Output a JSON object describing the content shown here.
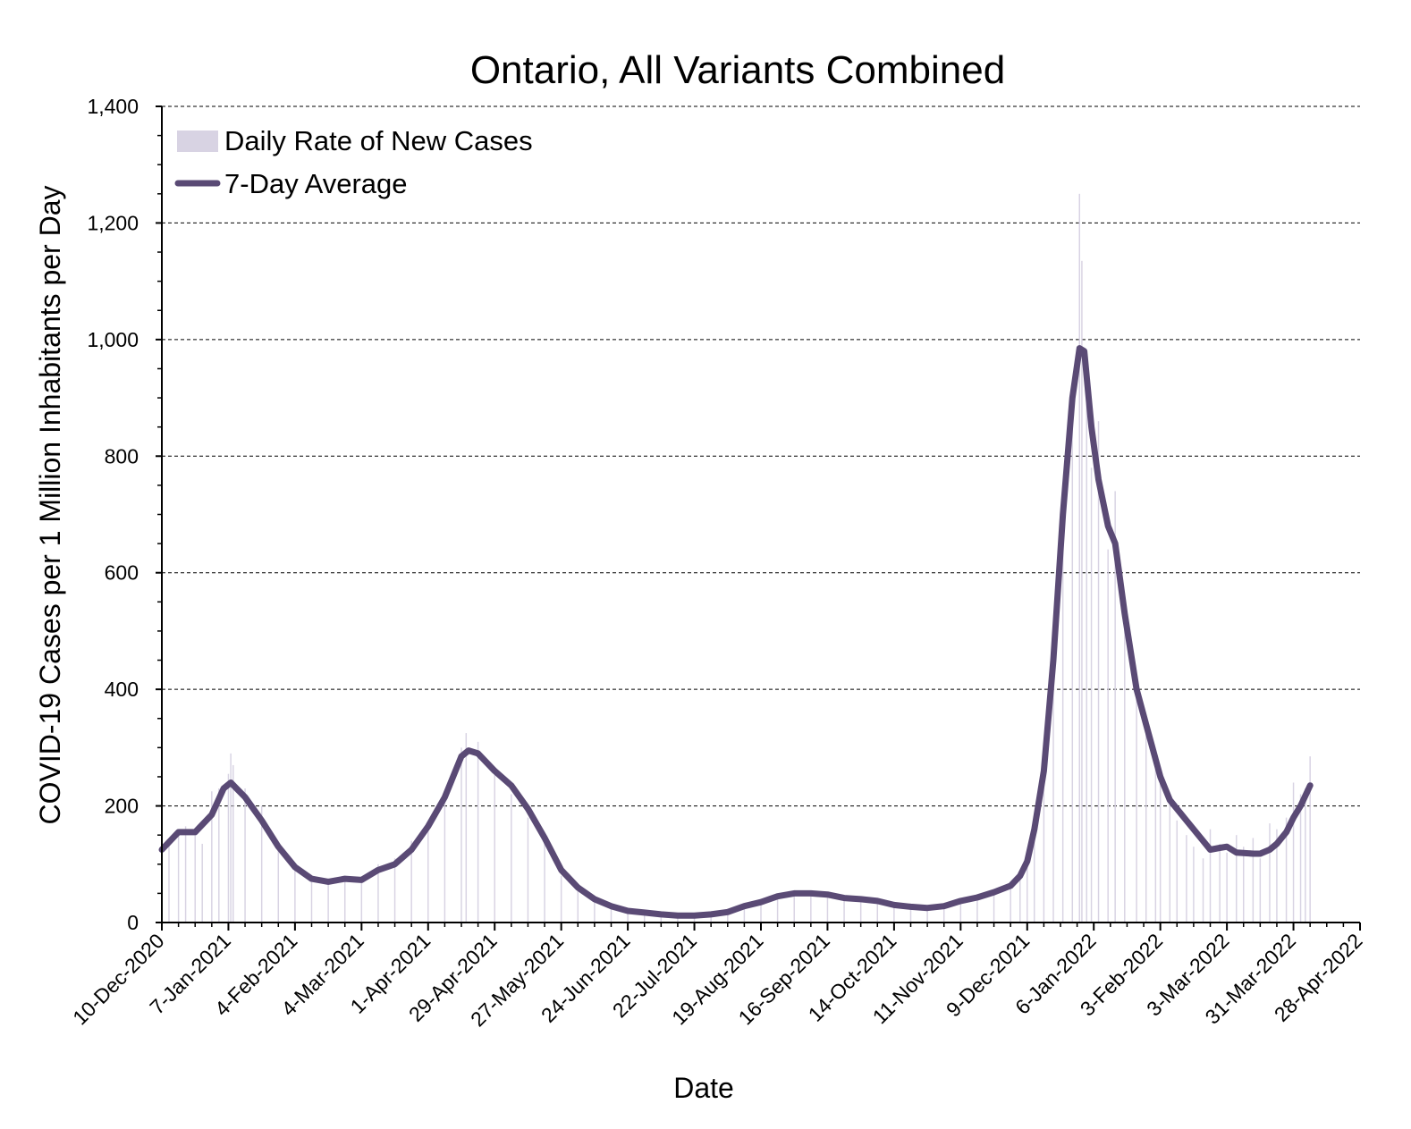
{
  "chart_data": {
    "type": "bar+line",
    "title": "Ontario, All Variants Combined",
    "xlabel": "Date",
    "ylabel": "COVID-19 Cases per 1 Million Inhabitants per Day",
    "ylim": [
      0,
      1400
    ],
    "y_ticks": [
      "0",
      "200",
      "400",
      "600",
      "800",
      "1,000",
      "1,200",
      "1,400"
    ],
    "y_tick_values": [
      0,
      200,
      400,
      600,
      800,
      1000,
      1200,
      1400
    ],
    "y_minor_step": 50,
    "x_range": [
      "2020-12-10",
      "2022-04-28"
    ],
    "x_ticks": [
      "10-Dec-2020",
      "7-Jan-2021",
      "4-Feb-2021",
      "4-Mar-2021",
      "1-Apr-2021",
      "29-Apr-2021",
      "27-May-2021",
      "24-Jun-2021",
      "22-Jul-2021",
      "19-Aug-2021",
      "16-Sep-2021",
      "14-Oct-2021",
      "11-Nov-2021",
      "9-Dec-2021",
      "6-Jan-2022",
      "3-Feb-2022",
      "3-Mar-2022",
      "31-Mar-2022",
      "28-Apr-2022"
    ],
    "x_tick_dates": [
      "2020-12-10",
      "2021-01-07",
      "2021-02-04",
      "2021-03-04",
      "2021-04-01",
      "2021-04-29",
      "2021-05-27",
      "2021-06-24",
      "2021-07-22",
      "2021-08-19",
      "2021-09-16",
      "2021-10-14",
      "2021-11-11",
      "2021-12-09",
      "2022-01-06",
      "2022-02-03",
      "2022-03-03",
      "2022-03-31",
      "2022-04-28"
    ],
    "grid": "horizontal-dashed",
    "legend_position": "top-left",
    "colors": {
      "bars": "#d8d3e3",
      "line": "#5a4a75",
      "grid": "#000000"
    },
    "series": [
      {
        "name": "Daily Rate of New Cases",
        "kind": "bar",
        "values": [
          [
            "2020-12-10",
            125
          ],
          [
            "2020-12-13",
            140
          ],
          [
            "2020-12-17",
            155
          ],
          [
            "2020-12-20",
            165
          ],
          [
            "2020-12-24",
            150
          ],
          [
            "2020-12-27",
            135
          ],
          [
            "2020-12-31",
            225
          ],
          [
            "2021-01-03",
            230
          ],
          [
            "2021-01-07",
            255
          ],
          [
            "2021-01-08",
            290
          ],
          [
            "2021-01-09",
            270
          ],
          [
            "2021-01-14",
            230
          ],
          [
            "2021-01-21",
            200
          ],
          [
            "2021-01-28",
            130
          ],
          [
            "2021-02-04",
            90
          ],
          [
            "2021-02-11",
            80
          ],
          [
            "2021-02-18",
            70
          ],
          [
            "2021-02-25",
            80
          ],
          [
            "2021-03-04",
            75
          ],
          [
            "2021-03-11",
            100
          ],
          [
            "2021-03-18",
            110
          ],
          [
            "2021-03-25",
            140
          ],
          [
            "2021-04-01",
            170
          ],
          [
            "2021-04-08",
            220
          ],
          [
            "2021-04-15",
            300
          ],
          [
            "2021-04-17",
            325
          ],
          [
            "2021-04-22",
            310
          ],
          [
            "2021-04-29",
            260
          ],
          [
            "2021-05-06",
            220
          ],
          [
            "2021-05-13",
            180
          ],
          [
            "2021-05-20",
            140
          ],
          [
            "2021-05-27",
            80
          ],
          [
            "2021-06-03",
            55
          ],
          [
            "2021-06-10",
            40
          ],
          [
            "2021-06-17",
            25
          ],
          [
            "2021-06-24",
            20
          ],
          [
            "2021-07-01",
            17
          ],
          [
            "2021-07-08",
            14
          ],
          [
            "2021-07-15",
            12
          ],
          [
            "2021-07-22",
            12
          ],
          [
            "2021-07-29",
            14
          ],
          [
            "2021-08-05",
            20
          ],
          [
            "2021-08-12",
            32
          ],
          [
            "2021-08-19",
            38
          ],
          [
            "2021-08-26",
            48
          ],
          [
            "2021-09-02",
            55
          ],
          [
            "2021-09-09",
            52
          ],
          [
            "2021-09-16",
            52
          ],
          [
            "2021-09-23",
            45
          ],
          [
            "2021-09-30",
            43
          ],
          [
            "2021-10-07",
            40
          ],
          [
            "2021-10-14",
            33
          ],
          [
            "2021-10-21",
            28
          ],
          [
            "2021-10-28",
            25
          ],
          [
            "2021-11-04",
            28
          ],
          [
            "2021-11-11",
            38
          ],
          [
            "2021-11-18",
            45
          ],
          [
            "2021-11-25",
            55
          ],
          [
            "2021-12-02",
            65
          ],
          [
            "2021-12-06",
            85
          ],
          [
            "2021-12-09",
            100
          ],
          [
            "2021-12-12",
            150
          ],
          [
            "2021-12-16",
            260
          ],
          [
            "2021-12-20",
            500
          ],
          [
            "2021-12-24",
            700
          ],
          [
            "2021-12-28",
            900
          ],
          [
            "2021-12-31",
            1250
          ],
          [
            "2022-01-01",
            1135
          ],
          [
            "2022-01-03",
            900
          ],
          [
            "2022-01-05",
            780
          ],
          [
            "2022-01-08",
            860
          ],
          [
            "2022-01-12",
            640
          ],
          [
            "2022-01-15",
            740
          ],
          [
            "2022-01-19",
            520
          ],
          [
            "2022-01-24",
            400
          ],
          [
            "2022-01-28",
            340
          ],
          [
            "2022-02-01",
            280
          ],
          [
            "2022-02-03",
            250
          ],
          [
            "2022-02-07",
            210
          ],
          [
            "2022-02-10",
            175
          ],
          [
            "2022-02-14",
            150
          ],
          [
            "2022-02-17",
            130
          ],
          [
            "2022-02-21",
            110
          ],
          [
            "2022-02-24",
            160
          ],
          [
            "2022-02-28",
            135
          ],
          [
            "2022-03-03",
            120
          ],
          [
            "2022-03-07",
            150
          ],
          [
            "2022-03-10",
            130
          ],
          [
            "2022-03-14",
            145
          ],
          [
            "2022-03-17",
            110
          ],
          [
            "2022-03-21",
            170
          ],
          [
            "2022-03-24",
            160
          ],
          [
            "2022-03-28",
            180
          ],
          [
            "2022-03-31",
            240
          ],
          [
            "2022-04-03",
            220
          ],
          [
            "2022-04-05",
            230
          ],
          [
            "2022-04-07",
            285
          ]
        ]
      },
      {
        "name": "7-Day Average",
        "kind": "line",
        "values": [
          [
            "2020-12-10",
            125
          ],
          [
            "2020-12-17",
            155
          ],
          [
            "2020-12-24",
            155
          ],
          [
            "2020-12-31",
            185
          ],
          [
            "2021-01-05",
            230
          ],
          [
            "2021-01-08",
            240
          ],
          [
            "2021-01-14",
            215
          ],
          [
            "2021-01-21",
            175
          ],
          [
            "2021-01-28",
            130
          ],
          [
            "2021-02-04",
            95
          ],
          [
            "2021-02-11",
            75
          ],
          [
            "2021-02-18",
            70
          ],
          [
            "2021-02-25",
            75
          ],
          [
            "2021-03-04",
            73
          ],
          [
            "2021-03-11",
            90
          ],
          [
            "2021-03-18",
            100
          ],
          [
            "2021-03-25",
            125
          ],
          [
            "2021-04-01",
            165
          ],
          [
            "2021-04-08",
            215
          ],
          [
            "2021-04-15",
            285
          ],
          [
            "2021-04-18",
            295
          ],
          [
            "2021-04-22",
            290
          ],
          [
            "2021-04-29",
            260
          ],
          [
            "2021-05-06",
            235
          ],
          [
            "2021-05-13",
            195
          ],
          [
            "2021-05-20",
            145
          ],
          [
            "2021-05-27",
            90
          ],
          [
            "2021-06-03",
            60
          ],
          [
            "2021-06-10",
            40
          ],
          [
            "2021-06-17",
            28
          ],
          [
            "2021-06-24",
            20
          ],
          [
            "2021-07-01",
            17
          ],
          [
            "2021-07-08",
            14
          ],
          [
            "2021-07-15",
            12
          ],
          [
            "2021-07-22",
            12
          ],
          [
            "2021-07-29",
            14
          ],
          [
            "2021-08-05",
            18
          ],
          [
            "2021-08-12",
            28
          ],
          [
            "2021-08-19",
            35
          ],
          [
            "2021-08-26",
            45
          ],
          [
            "2021-09-02",
            50
          ],
          [
            "2021-09-09",
            50
          ],
          [
            "2021-09-16",
            48
          ],
          [
            "2021-09-23",
            42
          ],
          [
            "2021-09-30",
            40
          ],
          [
            "2021-10-07",
            37
          ],
          [
            "2021-10-14",
            30
          ],
          [
            "2021-10-21",
            27
          ],
          [
            "2021-10-28",
            25
          ],
          [
            "2021-11-04",
            28
          ],
          [
            "2021-11-11",
            37
          ],
          [
            "2021-11-18",
            43
          ],
          [
            "2021-11-25",
            52
          ],
          [
            "2021-12-02",
            63
          ],
          [
            "2021-12-06",
            80
          ],
          [
            "2021-12-09",
            105
          ],
          [
            "2021-12-12",
            160
          ],
          [
            "2021-12-16",
            260
          ],
          [
            "2021-12-20",
            450
          ],
          [
            "2021-12-24",
            700
          ],
          [
            "2021-12-28",
            900
          ],
          [
            "2021-12-31",
            985
          ],
          [
            "2022-01-02",
            980
          ],
          [
            "2022-01-05",
            850
          ],
          [
            "2022-01-08",
            760
          ],
          [
            "2022-01-12",
            680
          ],
          [
            "2022-01-15",
            650
          ],
          [
            "2022-01-19",
            530
          ],
          [
            "2022-01-24",
            400
          ],
          [
            "2022-01-28",
            340
          ],
          [
            "2022-02-03",
            250
          ],
          [
            "2022-02-07",
            210
          ],
          [
            "2022-02-14",
            175
          ],
          [
            "2022-02-21",
            140
          ],
          [
            "2022-02-24",
            125
          ],
          [
            "2022-02-28",
            128
          ],
          [
            "2022-03-03",
            130
          ],
          [
            "2022-03-07",
            120
          ],
          [
            "2022-03-14",
            118
          ],
          [
            "2022-03-17",
            118
          ],
          [
            "2022-03-21",
            125
          ],
          [
            "2022-03-24",
            135
          ],
          [
            "2022-03-28",
            155
          ],
          [
            "2022-03-31",
            180
          ],
          [
            "2022-04-03",
            200
          ],
          [
            "2022-04-07",
            235
          ]
        ]
      }
    ]
  }
}
